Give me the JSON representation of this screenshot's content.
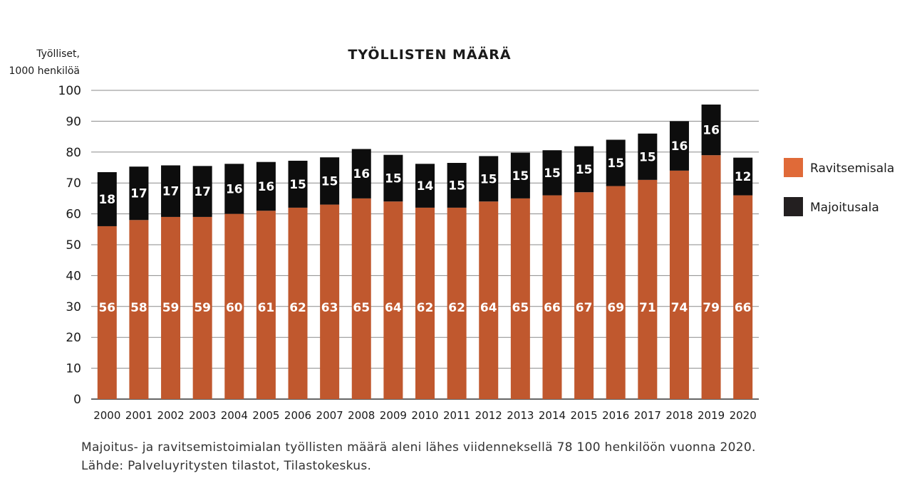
{
  "chart_data": {
    "type": "bar",
    "stacked": true,
    "title": "TYÖLLISTEN MÄÄRÄ",
    "ylabel_lines": [
      "Työlliset,",
      "1000 henkilöä"
    ],
    "xlabel": "",
    "ylim": [
      0,
      100
    ],
    "yticks": [
      0,
      10,
      20,
      30,
      40,
      50,
      60,
      70,
      80,
      90,
      100
    ],
    "grid": true,
    "legend_position": "right",
    "categories": [
      "2000",
      "2001",
      "2002",
      "2003",
      "2004",
      "2005",
      "2006",
      "2007",
      "2008",
      "2009",
      "2010",
      "2011",
      "2012",
      "2013",
      "2014",
      "2015",
      "2016",
      "2017",
      "2018",
      "2019",
      "2020"
    ],
    "series": [
      {
        "name": "Ravitsemisala",
        "color": "#c0582e",
        "legend_color": "#e06a38",
        "values": [
          56,
          58,
          59,
          59,
          60,
          61,
          62,
          63,
          65,
          64,
          62,
          62,
          64,
          65,
          66,
          67,
          69,
          71,
          74,
          79,
          66
        ],
        "labels": [
          "56",
          "58",
          "59",
          "59",
          "60",
          "61",
          "62",
          "63",
          "65",
          "64",
          "62",
          "62",
          "64",
          "65",
          "66",
          "67",
          "69",
          "71",
          "74",
          "79",
          "66"
        ]
      },
      {
        "name": "Majoitusala",
        "color": "#0d0d0d",
        "legend_color": "#231f20",
        "values": [
          17.5,
          17.3,
          16.7,
          16.5,
          16.2,
          15.8,
          15.2,
          15.3,
          16.0,
          15.1,
          14.2,
          14.5,
          14.7,
          14.8,
          14.6,
          14.9,
          15.0,
          15.0,
          16.0,
          16.4,
          12.2
        ],
        "labels": [
          "18",
          "17",
          "17",
          "17",
          "16",
          "16",
          "15",
          "15",
          "16",
          "15",
          "14",
          "15",
          "15",
          "15",
          "15",
          "15",
          "15",
          "15",
          "16",
          "16",
          "12"
        ]
      }
    ]
  },
  "caption": "Majoitus- ja ravitsemistoimialan työllisten määrä aleni lähes viidenneksellä 78 100 henkilöön vuonna 2020. Lähde: Palveluyritysten tilastot, Tilastokeskus."
}
